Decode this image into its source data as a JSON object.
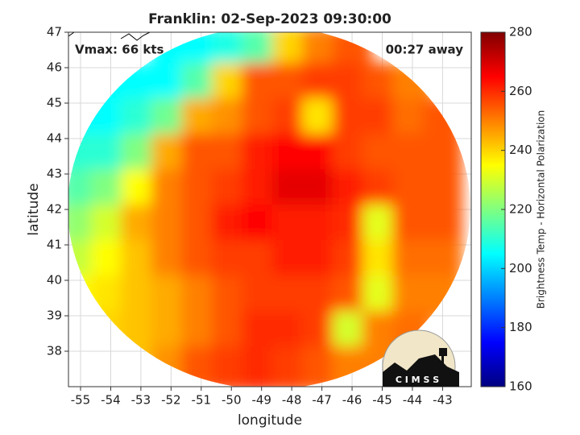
{
  "chart_data": {
    "type": "heatmap",
    "title": "Franklin: 02-Sep-2023 09:30:00",
    "annotations": [
      "Vmax: 66 kts",
      "00:27 away"
    ],
    "x_label": "longitude",
    "y_label": "latitude",
    "colorbar_label": "Brightness Temp - Horizontal Polarization",
    "logo": "C I M S S",
    "colormap": "jet",
    "grid": true,
    "x": [
      -55,
      -54,
      -53,
      -52,
      -51,
      -50,
      -49,
      -48,
      -47,
      -46,
      -45,
      -44,
      -43
    ],
    "y": [
      46.5,
      45.5,
      44.5,
      43.5,
      42.5,
      41.5,
      40.5,
      39.5,
      38.5,
      37.5
    ],
    "z": [
      [
        null,
        null,
        null,
        205,
        205,
        208,
        215,
        240,
        250,
        255,
        null,
        null,
        null
      ],
      [
        null,
        205,
        205,
        205,
        215,
        240,
        255,
        255,
        258,
        258,
        255,
        250,
        null
      ],
      [
        205,
        205,
        210,
        218,
        245,
        248,
        255,
        258,
        238,
        258,
        258,
        252,
        255
      ],
      [
        210,
        210,
        220,
        245,
        255,
        255,
        262,
        265,
        265,
        258,
        255,
        255,
        255
      ],
      [
        215,
        220,
        235,
        250,
        255,
        258,
        262,
        268,
        268,
        262,
        258,
        255,
        255
      ],
      [
        222,
        230,
        245,
        250,
        255,
        262,
        265,
        262,
        262,
        260,
        232,
        255,
        255
      ],
      [
        228,
        235,
        242,
        250,
        255,
        258,
        258,
        262,
        262,
        258,
        238,
        252,
        252
      ],
      [
        235,
        238,
        242,
        245,
        250,
        255,
        258,
        258,
        258,
        255,
        232,
        250,
        250
      ],
      [
        null,
        240,
        242,
        245,
        250,
        255,
        260,
        260,
        258,
        230,
        250,
        252,
        null
      ],
      [
        null,
        null,
        242,
        248,
        255,
        258,
        260,
        258,
        255,
        250,
        250,
        null,
        null
      ]
    ],
    "xlim": [
      -55.4,
      -42.05
    ],
    "ylim": [
      37,
      47
    ],
    "xticks": [
      -55,
      -54,
      -53,
      -52,
      -51,
      -50,
      -49,
      -48,
      -47,
      -46,
      -45,
      -44,
      -43
    ],
    "yticks": [
      38,
      39,
      40,
      41,
      42,
      43,
      44,
      45,
      46,
      47
    ],
    "clim": [
      160,
      280
    ],
    "cticks": [
      160,
      180,
      200,
      220,
      240,
      260,
      280
    ]
  }
}
